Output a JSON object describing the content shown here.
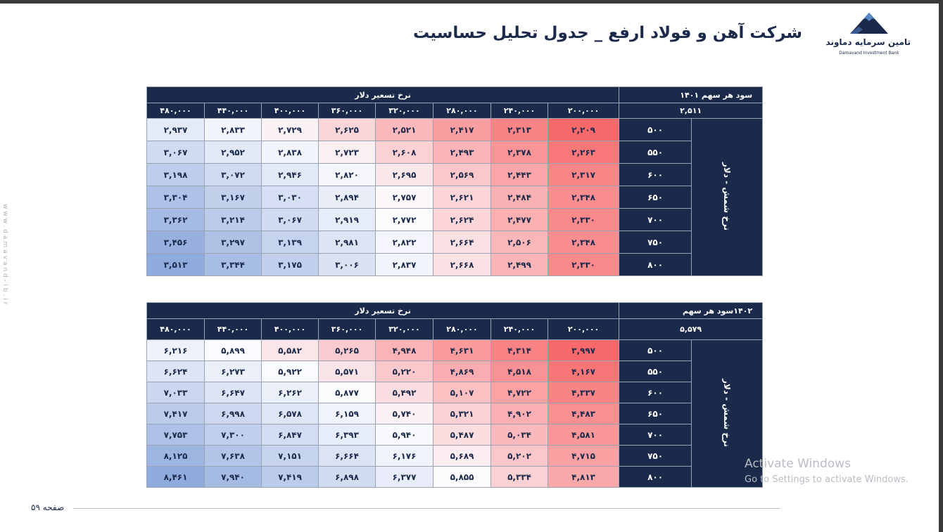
{
  "page": {
    "title": "شرکت آهن و فولاد ارفع _ جدول تحلیل حساسیت",
    "page_number": "صفحه ۵۹",
    "side_url": "www.damavand-ib.ir"
  },
  "logo": {
    "icon": "mountain-logo-icon",
    "name_fa": "تامین سرمایه دماوند",
    "name_en": "Damavand Investment Bank"
  },
  "tables": [
    {
      "eps_label": "سود هر سهم ۱۴۰۱",
      "base_value": "۲,۵۱۱",
      "col_header": "نرخ تسعیر دلار",
      "row_header": "نرخ شمش - دلار",
      "columns": [
        "۲۰۰,۰۰۰",
        "۲۴۰,۰۰۰",
        "۲۸۰,۰۰۰",
        "۳۲۰,۰۰۰",
        "۳۶۰,۰۰۰",
        "۴۰۰,۰۰۰",
        "۴۴۰,۰۰۰",
        "۴۸۰,۰۰۰"
      ],
      "rows": [
        "۵۰۰",
        "۵۵۰",
        "۶۰۰",
        "۶۵۰",
        "۷۰۰",
        "۷۵۰",
        "۸۰۰"
      ],
      "values": [
        [
          "۲,۲۰۹",
          "۲,۳۱۳",
          "۲,۴۱۷",
          "۲,۵۲۱",
          "۲,۶۲۵",
          "۲,۷۲۹",
          "۲,۸۳۳",
          "۲,۹۳۷"
        ],
        [
          "۲,۲۶۳",
          "۲,۳۷۸",
          "۲,۴۹۳",
          "۲,۶۰۸",
          "۲,۷۲۳",
          "۲,۸۳۸",
          "۲,۹۵۲",
          "۳,۰۶۷"
        ],
        [
          "۲,۳۱۷",
          "۲,۴۴۳",
          "۲,۵۶۹",
          "۲,۶۹۵",
          "۲,۸۲۰",
          "۲,۹۴۶",
          "۳,۰۷۲",
          "۳,۱۹۸"
        ],
        [
          "۲,۳۴۸",
          "۲,۴۸۴",
          "۲,۶۲۱",
          "۲,۷۵۷",
          "۲,۸۹۴",
          "۳,۰۳۰",
          "۳,۱۶۷",
          "۳,۳۰۴"
        ],
        [
          "۲,۳۳۰",
          "۲,۴۷۷",
          "۲,۶۲۴",
          "۲,۷۷۲",
          "۲,۹۱۹",
          "۳,۰۶۷",
          "۳,۲۱۴",
          "۳,۳۶۲"
        ],
        [
          "۲,۳۴۸",
          "۲,۵۰۶",
          "۲,۶۶۴",
          "۲,۸۲۲",
          "۲,۹۸۱",
          "۳,۱۳۹",
          "۳,۲۹۷",
          "۳,۴۵۶"
        ],
        [
          "۲,۳۳۰",
          "۲,۴۹۹",
          "۲,۶۶۸",
          "۲,۸۳۷",
          "۳,۰۰۶",
          "۳,۱۷۵",
          "۳,۳۴۴",
          "۳,۵۱۳"
        ]
      ],
      "numeric": [
        [
          2209,
          2313,
          2417,
          2521,
          2625,
          2729,
          2833,
          2937
        ],
        [
          2263,
          2378,
          2493,
          2608,
          2723,
          2838,
          2952,
          3067
        ],
        [
          2317,
          2443,
          2569,
          2695,
          2820,
          2946,
          3072,
          3198
        ],
        [
          2348,
          2484,
          2621,
          2757,
          2894,
          3030,
          3167,
          3304
        ],
        [
          2330,
          2477,
          2624,
          2772,
          2919,
          3067,
          3214,
          3362
        ],
        [
          2348,
          2506,
          2664,
          2822,
          2981,
          3139,
          3297,
          3456
        ],
        [
          2330,
          2499,
          2668,
          2837,
          3006,
          3175,
          3344,
          3513
        ]
      ]
    },
    {
      "eps_label": "۱۴۰۲سود هر سهم",
      "base_value": "۵,۵۷۹",
      "col_header": "نرخ تسعیر دلار",
      "row_header": "نرخ شمش - دلار",
      "columns": [
        "۲۰۰,۰۰۰",
        "۲۴۰,۰۰۰",
        "۲۸۰,۰۰۰",
        "۳۲۰,۰۰۰",
        "۳۶۰,۰۰۰",
        "۴۰۰,۰۰۰",
        "۴۴۰,۰۰۰",
        "۴۸۰,۰۰۰"
      ],
      "rows": [
        "۵۰۰",
        "۵۵۰",
        "۶۰۰",
        "۶۵۰",
        "۷۰۰",
        "۷۵۰",
        "۸۰۰"
      ],
      "values": [
        [
          "۳,۹۹۷",
          "۴,۳۱۴",
          "۴,۶۳۱",
          "۴,۹۴۸",
          "۵,۲۶۵",
          "۵,۵۸۲",
          "۵,۸۹۹",
          "۶,۲۱۶"
        ],
        [
          "۴,۱۶۷",
          "۴,۵۱۸",
          "۴,۸۶۹",
          "۵,۲۲۰",
          "۵,۵۷۱",
          "۵,۹۲۲",
          "۶,۲۷۳",
          "۶,۶۲۴"
        ],
        [
          "۴,۳۳۷",
          "۴,۷۲۲",
          "۵,۱۰۷",
          "۵,۴۹۲",
          "۵,۸۷۷",
          "۶,۲۶۲",
          "۶,۶۴۷",
          "۷,۰۳۳"
        ],
        [
          "۴,۴۸۳",
          "۴,۹۰۲",
          "۵,۳۲۱",
          "۵,۷۴۰",
          "۶,۱۵۹",
          "۶,۵۷۸",
          "۶,۹۹۸",
          "۷,۴۱۷"
        ],
        [
          "۴,۵۸۱",
          "۵,۰۳۴",
          "۵,۴۸۷",
          "۵,۹۴۰",
          "۶,۳۹۳",
          "۶,۸۴۷",
          "۷,۳۰۰",
          "۷,۷۵۳"
        ],
        [
          "۴,۷۱۵",
          "۵,۲۰۲",
          "۵,۶۸۹",
          "۶,۱۷۶",
          "۶,۶۶۴",
          "۷,۱۵۱",
          "۷,۶۳۸",
          "۸,۱۲۵"
        ],
        [
          "۴,۸۱۳",
          "۵,۳۳۴",
          "۵,۸۵۵",
          "۶,۳۷۷",
          "۶,۸۹۸",
          "۷,۴۱۹",
          "۷,۹۴۰",
          "۸,۴۶۱"
        ]
      ],
      "numeric": [
        [
          3997,
          4314,
          4631,
          4948,
          5265,
          5582,
          5899,
          6216
        ],
        [
          4167,
          4518,
          4869,
          5220,
          5571,
          5922,
          6273,
          6624
        ],
        [
          4337,
          4722,
          5107,
          5492,
          5877,
          6262,
          6647,
          7033
        ],
        [
          4483,
          4902,
          5321,
          5740,
          6159,
          6578,
          6998,
          7417
        ],
        [
          4581,
          5034,
          5487,
          5940,
          6393,
          6847,
          7300,
          7753
        ],
        [
          4715,
          5202,
          5689,
          6176,
          6664,
          7151,
          7638,
          8125
        ],
        [
          4813,
          5334,
          5855,
          6377,
          6898,
          7419,
          7940,
          8461
        ]
      ]
    }
  ],
  "heatmap_colors": {
    "low": "#f8696b",
    "mid": "#fcfcff",
    "high": "#8faadc"
  },
  "watermark": {
    "line1": "Activate Windows",
    "line2": "Go to Settings to activate Windows."
  }
}
